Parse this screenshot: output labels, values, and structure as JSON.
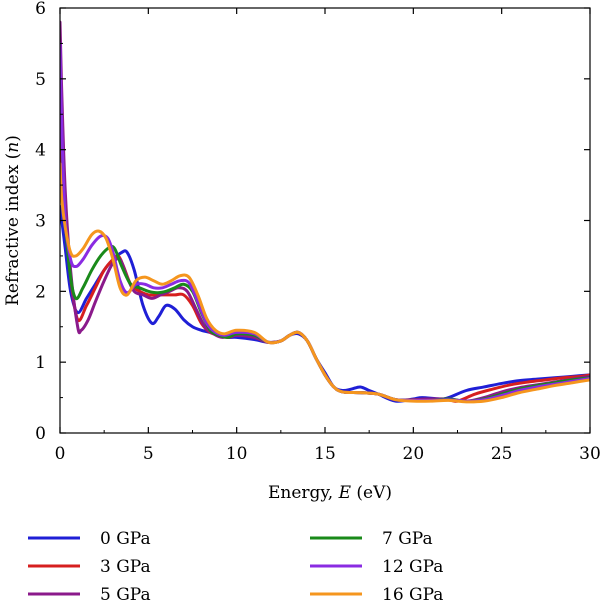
{
  "chart_data": {
    "type": "line",
    "xlabel": "Energy, E (eV)",
    "xlabel_parts": [
      "Energy, ",
      "E",
      " (eV)"
    ],
    "ylabel": "Refractive index (n)",
    "ylabel_parts": [
      "Refractive index (",
      "n",
      ")"
    ],
    "xlim": [
      0,
      30
    ],
    "ylim": [
      0,
      6
    ],
    "xticks": [
      0,
      5,
      10,
      15,
      20,
      25,
      30
    ],
    "yticks": [
      0,
      1,
      2,
      3,
      4,
      5,
      6
    ],
    "grid": false,
    "legend_position": "bottom",
    "series": [
      {
        "name": "0 GPa",
        "color": "#1f1fd6",
        "x": [
          0,
          0.1,
          0.3,
          0.6,
          1.0,
          1.5,
          2.0,
          2.5,
          3.0,
          3.5,
          3.8,
          4.2,
          4.7,
          5.2,
          5.6,
          6.0,
          6.5,
          7.0,
          7.5,
          8.0,
          8.5,
          9.0,
          9.5,
          10.0,
          11.0,
          11.8,
          12.5,
          13.0,
          13.5,
          14.0,
          14.5,
          15.0,
          15.5,
          16.0,
          16.5,
          17.0,
          17.5,
          18.0,
          19.0,
          20.0,
          20.5,
          21.5,
          22.0,
          23.0,
          24.0,
          25.0,
          26.0,
          27.0,
          28.0,
          29.0,
          30.0
        ],
        "y": [
          3.2,
          3.0,
          2.6,
          2.0,
          1.7,
          1.9,
          2.1,
          2.3,
          2.45,
          2.55,
          2.55,
          2.3,
          1.8,
          1.55,
          1.65,
          1.8,
          1.75,
          1.6,
          1.5,
          1.45,
          1.42,
          1.38,
          1.35,
          1.35,
          1.32,
          1.28,
          1.3,
          1.38,
          1.4,
          1.3,
          1.05,
          0.85,
          0.65,
          0.6,
          0.62,
          0.65,
          0.6,
          0.55,
          0.45,
          0.48,
          0.5,
          0.48,
          0.5,
          0.6,
          0.65,
          0.7,
          0.74,
          0.76,
          0.78,
          0.8,
          0.82
        ]
      },
      {
        "name": "3 GPa",
        "color": "#d61f1f",
        "x": [
          0,
          0.1,
          0.3,
          0.6,
          1.0,
          1.5,
          2.0,
          2.5,
          3.0,
          3.3,
          3.6,
          4.0,
          4.5,
          5.0,
          5.5,
          6.0,
          6.5,
          7.0,
          7.5,
          8.0,
          8.5,
          9.0,
          9.5,
          10.0,
          11.0,
          11.8,
          12.5,
          13.0,
          13.5,
          14.0,
          14.5,
          15.0,
          15.5,
          16.0,
          17.0,
          18.0,
          19.0,
          20.0,
          21.0,
          22.0,
          22.5,
          23.5,
          24.5,
          25.5,
          26.5,
          27.5,
          28.5,
          29.5,
          30.0
        ],
        "y": [
          4.5,
          3.8,
          3.0,
          2.2,
          1.6,
          1.8,
          2.05,
          2.3,
          2.45,
          2.5,
          2.35,
          2.1,
          2.0,
          1.95,
          1.95,
          1.95,
          1.95,
          1.95,
          1.8,
          1.55,
          1.42,
          1.38,
          1.35,
          1.38,
          1.35,
          1.28,
          1.3,
          1.38,
          1.42,
          1.3,
          1.05,
          0.82,
          0.65,
          0.58,
          0.57,
          0.55,
          0.47,
          0.47,
          0.48,
          0.47,
          0.45,
          0.55,
          0.62,
          0.68,
          0.72,
          0.75,
          0.78,
          0.8,
          0.82
        ]
      },
      {
        "name": "5 GPa",
        "color": "#8b1a8b",
        "x": [
          0,
          0.1,
          0.3,
          0.6,
          1.0,
          1.2,
          1.6,
          2.0,
          2.5,
          3.0,
          3.4,
          3.8,
          4.2,
          4.7,
          5.2,
          5.7,
          6.2,
          6.7,
          7.2,
          7.7,
          8.2,
          8.7,
          9.2,
          10.0,
          11.0,
          11.8,
          12.5,
          13.0,
          13.5,
          14.0,
          14.5,
          15.0,
          15.5,
          16.0,
          17.0,
          18.0,
          19.0,
          20.0,
          21.0,
          22.0,
          23.0,
          24.0,
          25.0,
          26.0,
          27.0,
          28.0,
          29.0,
          30.0
        ],
        "y": [
          5.8,
          4.8,
          3.4,
          2.3,
          1.5,
          1.45,
          1.6,
          1.85,
          2.15,
          2.4,
          2.45,
          2.2,
          2.0,
          1.95,
          1.9,
          1.95,
          2.0,
          2.05,
          2.0,
          1.75,
          1.5,
          1.4,
          1.35,
          1.38,
          1.35,
          1.28,
          1.3,
          1.38,
          1.42,
          1.3,
          1.05,
          0.82,
          0.65,
          0.58,
          0.57,
          0.55,
          0.47,
          0.47,
          0.48,
          0.48,
          0.45,
          0.5,
          0.58,
          0.64,
          0.68,
          0.72,
          0.76,
          0.8
        ]
      },
      {
        "name": "7 GPa",
        "color": "#1a8a1a",
        "x": [
          0,
          0.1,
          0.3,
          0.6,
          0.9,
          1.3,
          1.8,
          2.3,
          2.8,
          3.1,
          3.5,
          4.0,
          4.5,
          5.0,
          5.5,
          6.0,
          6.5,
          7.0,
          7.5,
          8.0,
          8.5,
          9.0,
          9.5,
          10.0,
          11.0,
          11.8,
          12.5,
          13.0,
          13.5,
          14.0,
          14.5,
          15.0,
          15.5,
          16.0,
          17.0,
          18.0,
          19.0,
          20.0,
          21.0,
          22.0,
          23.0,
          24.0,
          25.0,
          26.0,
          27.0,
          28.0,
          29.0,
          30.0
        ],
        "y": [
          5.0,
          4.2,
          3.0,
          2.2,
          1.9,
          2.05,
          2.3,
          2.5,
          2.62,
          2.6,
          2.35,
          2.1,
          2.05,
          2.0,
          1.98,
          2.0,
          2.05,
          2.1,
          2.0,
          1.7,
          1.45,
          1.38,
          1.35,
          1.4,
          1.38,
          1.28,
          1.3,
          1.38,
          1.42,
          1.3,
          1.05,
          0.82,
          0.65,
          0.58,
          0.57,
          0.55,
          0.47,
          0.46,
          0.46,
          0.48,
          0.45,
          0.48,
          0.55,
          0.62,
          0.67,
          0.71,
          0.75,
          0.78
        ]
      },
      {
        "name": "12 GPa",
        "color": "#8a2be2",
        "x": [
          0,
          0.1,
          0.3,
          0.6,
          0.9,
          1.3,
          1.8,
          2.3,
          2.7,
          3.0,
          3.4,
          3.8,
          4.3,
          4.8,
          5.3,
          5.8,
          6.3,
          6.8,
          7.3,
          7.8,
          8.3,
          8.8,
          9.3,
          10.0,
          11.0,
          11.8,
          12.5,
          13.0,
          13.5,
          14.0,
          14.5,
          15.0,
          15.5,
          16.0,
          17.0,
          18.0,
          19.0,
          20.0,
          21.0,
          22.0,
          23.0,
          24.0,
          25.0,
          26.0,
          27.0,
          28.0,
          29.0,
          30.0
        ],
        "y": [
          5.5,
          4.3,
          3.0,
          2.45,
          2.35,
          2.45,
          2.65,
          2.78,
          2.75,
          2.55,
          2.15,
          1.98,
          2.1,
          2.1,
          2.05,
          2.05,
          2.1,
          2.15,
          2.12,
          1.85,
          1.55,
          1.42,
          1.38,
          1.42,
          1.4,
          1.28,
          1.3,
          1.38,
          1.42,
          1.3,
          1.05,
          0.82,
          0.65,
          0.58,
          0.57,
          0.55,
          0.47,
          0.46,
          0.46,
          0.47,
          0.45,
          0.47,
          0.53,
          0.6,
          0.65,
          0.69,
          0.73,
          0.77
        ]
      },
      {
        "name": "16 GPa",
        "color": "#f5961e",
        "x": [
          0,
          0.1,
          0.3,
          0.6,
          0.9,
          1.3,
          1.8,
          2.2,
          2.6,
          3.0,
          3.4,
          3.8,
          4.3,
          4.8,
          5.3,
          5.8,
          6.3,
          6.8,
          7.3,
          7.8,
          8.3,
          8.8,
          9.3,
          10.0,
          11.0,
          11.8,
          12.5,
          13.0,
          13.5,
          14.0,
          14.5,
          15.0,
          15.5,
          16.0,
          17.0,
          18.0,
          19.0,
          20.0,
          21.0,
          22.0,
          23.0,
          24.0,
          25.0,
          26.0,
          27.0,
          28.0,
          29.0,
          30.0
        ],
        "y": [
          3.8,
          3.3,
          2.9,
          2.55,
          2.5,
          2.6,
          2.8,
          2.85,
          2.75,
          2.45,
          2.05,
          1.95,
          2.15,
          2.2,
          2.15,
          2.1,
          2.15,
          2.22,
          2.2,
          1.95,
          1.62,
          1.45,
          1.4,
          1.45,
          1.42,
          1.28,
          1.3,
          1.38,
          1.42,
          1.3,
          1.05,
          0.82,
          0.65,
          0.58,
          0.57,
          0.55,
          0.47,
          0.45,
          0.45,
          0.46,
          0.44,
          0.45,
          0.5,
          0.57,
          0.62,
          0.67,
          0.71,
          0.75
        ]
      }
    ]
  }
}
